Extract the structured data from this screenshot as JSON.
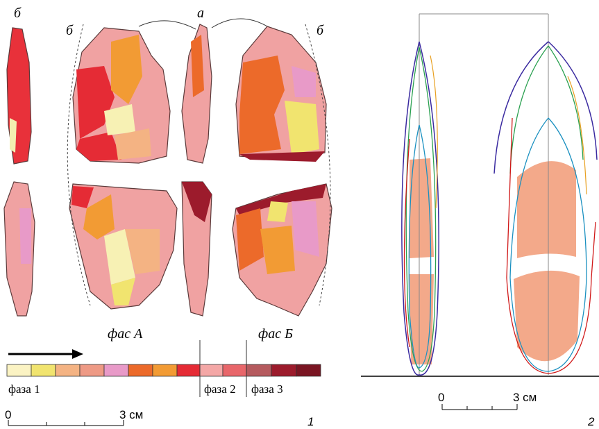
{
  "panel_1": {
    "view_labels": [
      "б",
      "б",
      "а",
      "б"
    ],
    "face_labels": [
      "фас А",
      "фас Б"
    ],
    "phase_labels": [
      "фаза 1",
      "фаза 2",
      "фаза 3"
    ],
    "scale": {
      "start": "0",
      "end": "3 см"
    },
    "number": "1"
  },
  "panel_2": {
    "scale": {
      "start": "0",
      "end": "3 см"
    },
    "number": "2"
  }
}
